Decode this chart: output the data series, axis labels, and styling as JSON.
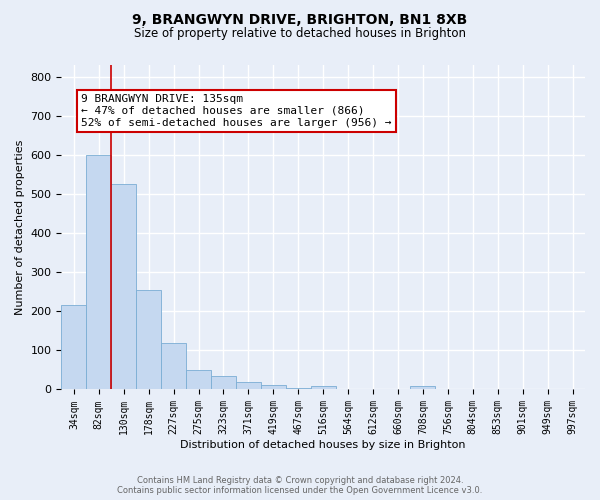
{
  "title": "9, BRANGWYN DRIVE, BRIGHTON, BN1 8XB",
  "subtitle": "Size of property relative to detached houses in Brighton",
  "xlabel": "Distribution of detached houses by size in Brighton",
  "ylabel": "Number of detached properties",
  "bar_labels": [
    "34sqm",
    "82sqm",
    "130sqm",
    "178sqm",
    "227sqm",
    "275sqm",
    "323sqm",
    "371sqm",
    "419sqm",
    "467sqm",
    "516sqm",
    "564sqm",
    "612sqm",
    "660sqm",
    "708sqm",
    "756sqm",
    "804sqm",
    "853sqm",
    "901sqm",
    "949sqm",
    "997sqm"
  ],
  "bar_values": [
    215,
    600,
    525,
    255,
    118,
    50,
    35,
    20,
    12,
    5,
    8,
    0,
    0,
    0,
    8,
    0,
    0,
    0,
    0,
    0,
    0
  ],
  "bar_color": "#c5d8f0",
  "bar_edge_color": "#7aadd4",
  "ylim": [
    0,
    830
  ],
  "property_line_index": 2,
  "property_line_color": "#cc0000",
  "annotation_title": "9 BRANGWYN DRIVE: 135sqm",
  "annotation_line1": "← 47% of detached houses are smaller (866)",
  "annotation_line2": "52% of semi-detached houses are larger (956) →",
  "annotation_box_facecolor": "#ffffff",
  "annotation_box_edgecolor": "#cc0000",
  "footer_line1": "Contains HM Land Registry data © Crown copyright and database right 2024.",
  "footer_line2": "Contains public sector information licensed under the Open Government Licence v3.0.",
  "background_color": "#e8eef8",
  "plot_bg_color": "#e8eef8",
  "title_fontsize": 10,
  "subtitle_fontsize": 8.5,
  "ylabel_fontsize": 8,
  "xlabel_fontsize": 8,
  "tick_fontsize": 7,
  "footer_fontsize": 6,
  "grid_color": "#ffffff",
  "grid_linewidth": 1.0
}
